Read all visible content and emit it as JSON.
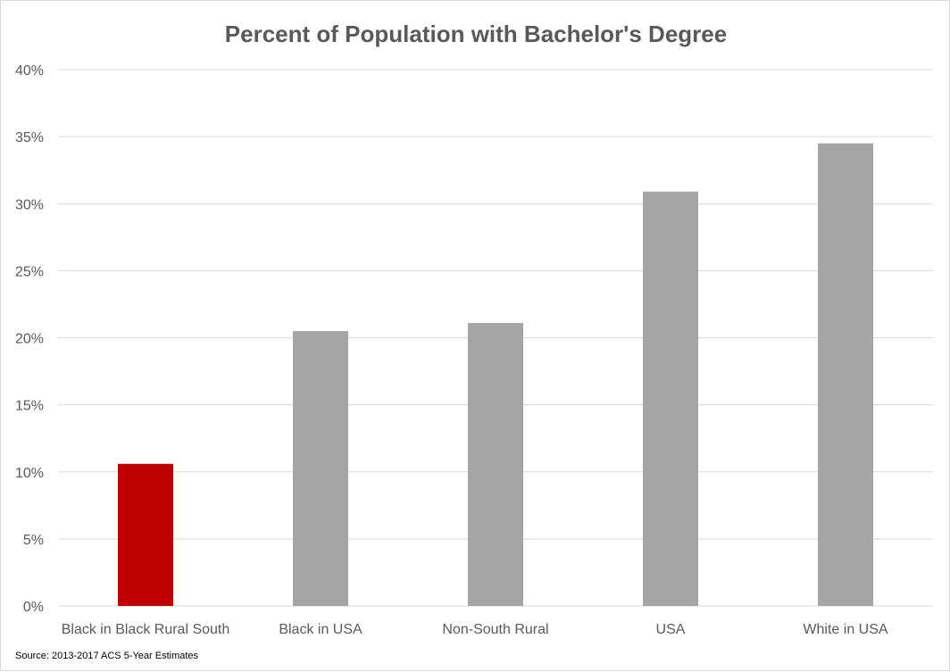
{
  "chart_data": {
    "type": "bar",
    "title": "Percent of Population with Bachelor's Degree",
    "categories": [
      "Black in Black Rural South",
      "Black in USA",
      "Non-South Rural",
      "USA",
      "White in USA"
    ],
    "values": [
      10.6,
      20.5,
      21.1,
      30.9,
      34.5
    ],
    "value_unit": "%",
    "ylim": [
      0,
      40
    ],
    "yticks": [
      "0%",
      "5%",
      "10%",
      "15%",
      "20%",
      "25%",
      "30%",
      "35%",
      "40%"
    ],
    "xlabel": "",
    "ylabel": "",
    "grid": true,
    "legend": "none",
    "colors": {
      "default_bar": "#a5a5a5",
      "highlight_bar": "#c00000",
      "highlight_index": 0,
      "gridline": "#d9d9d9",
      "text": "#595959"
    },
    "source": "Source: 2013-2017 ACS 5-Year Estimates"
  }
}
